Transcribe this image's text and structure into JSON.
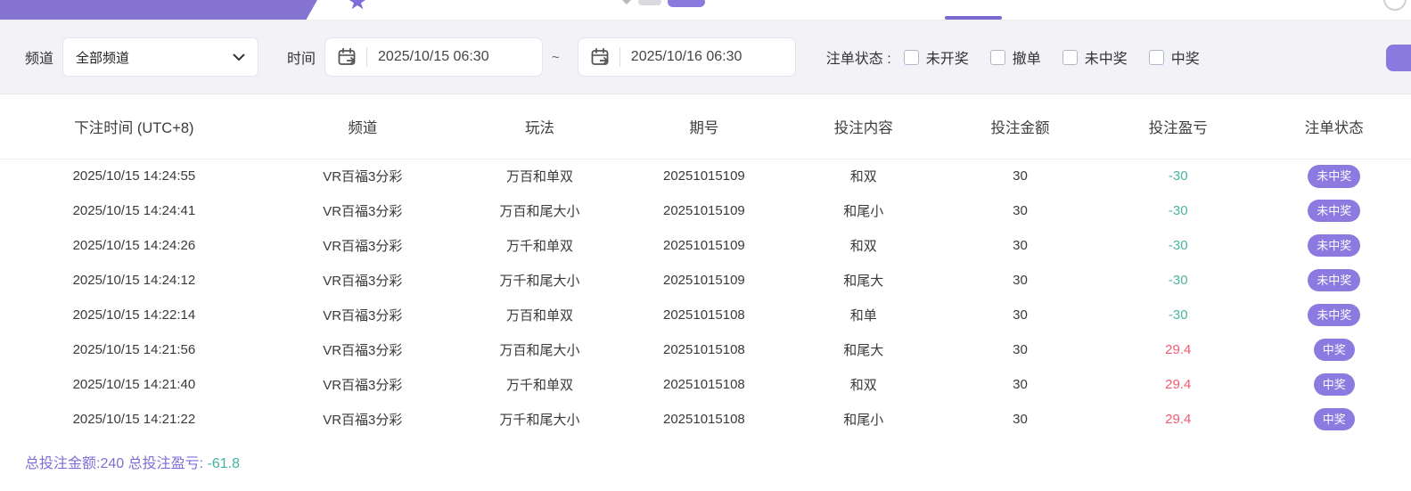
{
  "topbar": {
    "icons": [
      "star-icon",
      "chevron-down-icon",
      "pill-button",
      "avatar"
    ],
    "active_tab_underline_color": "#7b68ce",
    "bar_color": "#8674d2"
  },
  "filters": {
    "channel_label": "频道",
    "channel_value": "全部频道",
    "channel_icon": "chevron-down-icon",
    "time_label": "时间",
    "date_from": "2025/10/15 06:30",
    "date_to": "2025/10/16 06:30",
    "range_separator": "~",
    "date_icon": "calendar-arrow-icon",
    "status_label": "注单状态 :",
    "status_options": [
      {
        "label": "未开奖",
        "checked": false
      },
      {
        "label": "撤单",
        "checked": false
      },
      {
        "label": "未中奖",
        "checked": false
      },
      {
        "label": "中奖",
        "checked": false
      }
    ],
    "search_button_color": "#8a7ae0"
  },
  "table": {
    "headers": [
      "下注时间 (UTC+8)",
      "频道",
      "玩法",
      "期号",
      "投注内容",
      "投注金额",
      "投注盈亏",
      "注单状态"
    ],
    "rows": [
      {
        "time": "2025/10/15 14:24:55",
        "channel": "VR百福3分彩",
        "play": "万百和单双",
        "issue": "20251015109",
        "content": "和双",
        "amount": "30",
        "profit": "-30",
        "profit_type": "loss",
        "status": "未中奖"
      },
      {
        "time": "2025/10/15 14:24:41",
        "channel": "VR百福3分彩",
        "play": "万百和尾大小",
        "issue": "20251015109",
        "content": "和尾小",
        "amount": "30",
        "profit": "-30",
        "profit_type": "loss",
        "status": "未中奖"
      },
      {
        "time": "2025/10/15 14:24:26",
        "channel": "VR百福3分彩",
        "play": "万千和单双",
        "issue": "20251015109",
        "content": "和双",
        "amount": "30",
        "profit": "-30",
        "profit_type": "loss",
        "status": "未中奖"
      },
      {
        "time": "2025/10/15 14:24:12",
        "channel": "VR百福3分彩",
        "play": "万千和尾大小",
        "issue": "20251015109",
        "content": "和尾大",
        "amount": "30",
        "profit": "-30",
        "profit_type": "loss",
        "status": "未中奖"
      },
      {
        "time": "2025/10/15 14:22:14",
        "channel": "VR百福3分彩",
        "play": "万百和单双",
        "issue": "20251015108",
        "content": "和单",
        "amount": "30",
        "profit": "-30",
        "profit_type": "loss",
        "status": "未中奖"
      },
      {
        "time": "2025/10/15 14:21:56",
        "channel": "VR百福3分彩",
        "play": "万百和尾大小",
        "issue": "20251015108",
        "content": "和尾大",
        "amount": "30",
        "profit": "29.4",
        "profit_type": "win",
        "status": "中奖"
      },
      {
        "time": "2025/10/15 14:21:40",
        "channel": "VR百福3分彩",
        "play": "万千和单双",
        "issue": "20251015108",
        "content": "和双",
        "amount": "30",
        "profit": "29.4",
        "profit_type": "win",
        "status": "中奖"
      },
      {
        "time": "2025/10/15 14:21:22",
        "channel": "VR百福3分彩",
        "play": "万千和尾大小",
        "issue": "20251015108",
        "content": "和尾小",
        "amount": "30",
        "profit": "29.4",
        "profit_type": "win",
        "status": "中奖"
      }
    ]
  },
  "summary": {
    "total_amount_label": "总投注金额:",
    "total_amount": "240",
    "total_profit_label": "总投注盈亏:",
    "total_profit": "-61.8"
  },
  "colors": {
    "loss_text": "#4cb4a1",
    "win_text": "#f05a72",
    "badge_bg": "#8c7ae0",
    "summary_text": "#7d6fd6",
    "filter_bg": "#f2f2f7"
  }
}
